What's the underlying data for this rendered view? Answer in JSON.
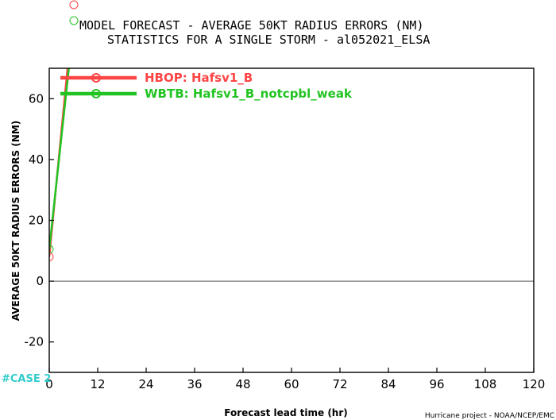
{
  "chart_data": {
    "type": "line",
    "title": "MODEL FORECAST - AVERAGE 50KT RADIUS ERRORS (NM)",
    "subtitle": "STATISTICS FOR A SINGLE STORM - al052021_ELSA",
    "xlabel": "Forecast lead time (hr)",
    "ylabel": "AVERAGE 50KT RADIUS ERRORS (NM)",
    "xlim": [
      0,
      120
    ],
    "ylim": [
      -30,
      70
    ],
    "xticks": [
      0,
      12,
      24,
      36,
      48,
      60,
      72,
      84,
      96,
      108,
      120
    ],
    "yticks": [
      -20,
      0,
      20,
      40,
      60
    ],
    "grid": false,
    "legend_position": "top-left",
    "series": [
      {
        "name": "HBOP: Hafsv1_B",
        "color": "#ff4444",
        "x": [
          0,
          6
        ],
        "y": [
          8,
          90
        ]
      },
      {
        "name": "WBTB: Hafsv1_B_notcpbl_weak",
        "color": "#22c322",
        "x": [
          0,
          6
        ],
        "y": [
          10.5,
          84
        ]
      }
    ]
  },
  "footer": {
    "case_label": "#CASE 2",
    "credit": "Hurricane project - NOAA/NCEP/EMC"
  },
  "colors": {
    "case": "#33cccc",
    "axis": "#000000",
    "zero_line": "#555555"
  }
}
